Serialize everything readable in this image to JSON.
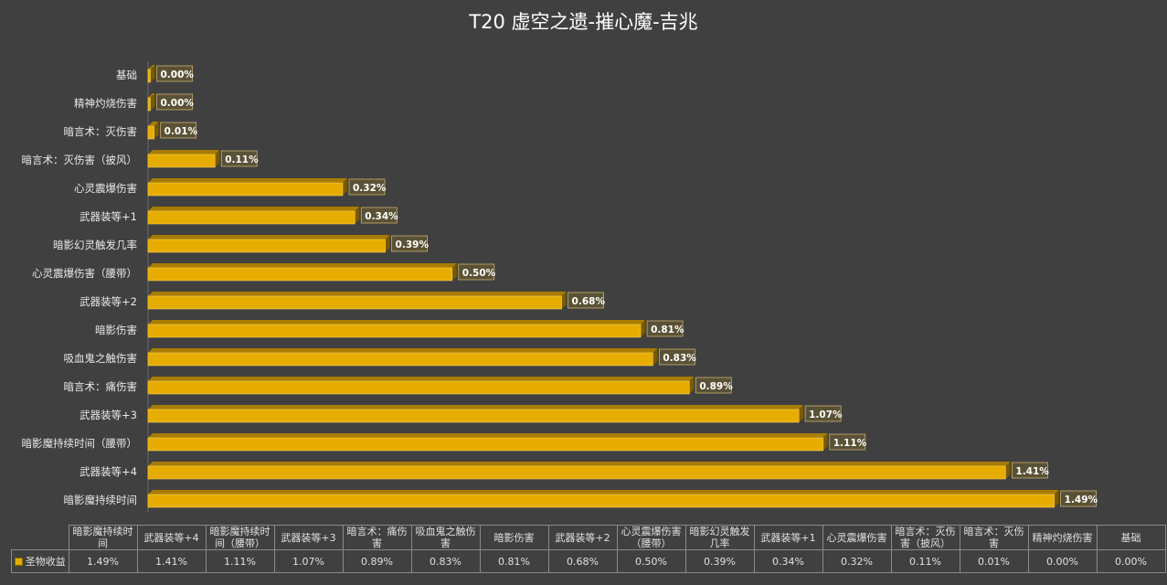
{
  "chart_data": {
    "type": "bar",
    "orientation": "horizontal",
    "title": "T20 虚空之遗-摧心魔-吉兆",
    "series": [
      {
        "name": "圣物收益",
        "color": "#e6ad00",
        "values": [
          1.49,
          1.41,
          1.11,
          1.07,
          0.89,
          0.83,
          0.81,
          0.68,
          0.5,
          0.39,
          0.34,
          0.32,
          0.11,
          0.01,
          0.0,
          0.0
        ]
      }
    ],
    "categories": [
      "暗影魔持续时间",
      "武器装等+4",
      "暗影魔持续时间（腰带）",
      "武器装等+3",
      "暗言术：痛伤害",
      "吸血鬼之触伤害",
      "暗影伤害",
      "武器装等+2",
      "心灵震爆伤害（腰带）",
      "暗影幻灵触发几率",
      "武器装等+1",
      "心灵震爆伤害",
      "暗言术：灭伤害（披风）",
      "暗言术：灭伤害",
      "精神灼烧伤害",
      "基础"
    ],
    "value_labels": [
      "1.49%",
      "1.41%",
      "1.11%",
      "1.07%",
      "0.89%",
      "0.83%",
      "0.81%",
      "0.68%",
      "0.50%",
      "0.39%",
      "0.34%",
      "0.32%",
      "0.11%",
      "0.01%",
      "0.00%",
      "0.00%"
    ],
    "xlim": [
      0,
      1.5
    ],
    "xlabel": "",
    "ylabel": "",
    "grid": false,
    "legend": "in data table",
    "table": {
      "headers": [
        "暗影魔持续时间",
        "武器装等+4",
        "暗影魔持续时间（腰带）",
        "武器装等+3",
        "暗言术：痛伤害",
        "吸血鬼之触伤害",
        "暗影伤害",
        "武器装等+2",
        "心灵震爆伤害（腰带）",
        "暗影幻灵触发几率",
        "武器装等+1",
        "心灵震爆伤害",
        "暗言术：灭伤害（披风）",
        "暗言术：灭伤害",
        "精神灼烧伤害",
        "基础"
      ],
      "row_label": "圣物收益",
      "cells": [
        "1.49%",
        "1.41%",
        "1.11%",
        "1.07%",
        "0.89%",
        "0.83%",
        "0.81%",
        "0.68%",
        "0.50%",
        "0.39%",
        "0.34%",
        "0.32%",
        "0.11%",
        "0.01%",
        "0.00%",
        "0.00%"
      ]
    }
  },
  "colors": {
    "background": "#404040",
    "bar_front": "#e6ad00",
    "bar_top": "#a87c00",
    "bar_side": "#7a5a00",
    "label_box": "#5a5236",
    "label_border": "#c8b070"
  }
}
